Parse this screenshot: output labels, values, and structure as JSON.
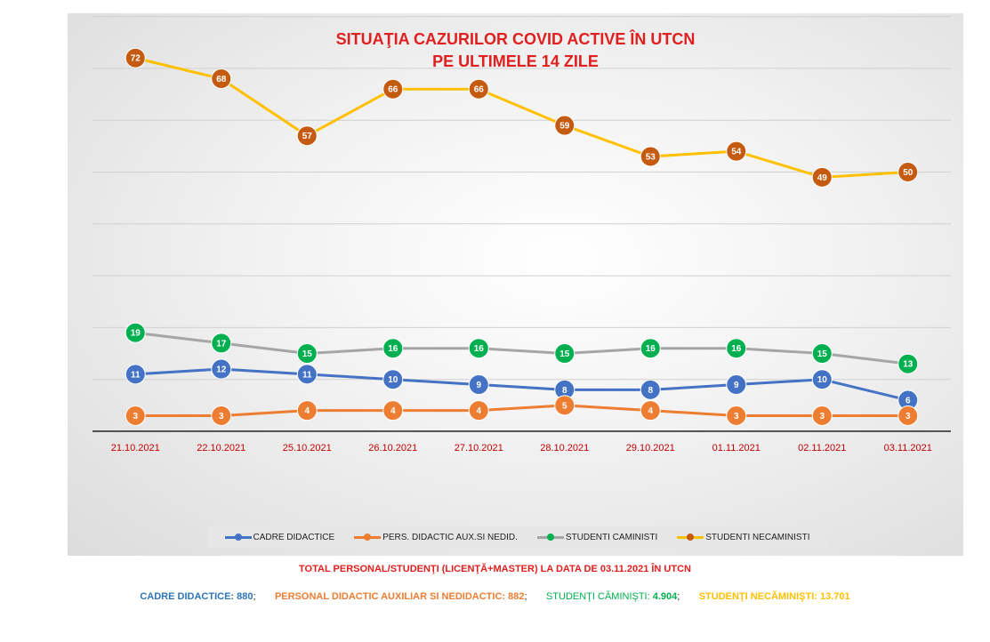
{
  "chart_data": {
    "type": "line",
    "title_line1": "SITUAŢIA CAZURILOR COVID ACTIVE ÎN UTCN",
    "title_line2": "PE ULTIMELE 14 ZILE",
    "categories": [
      "21.10.2021",
      "22.10.2021",
      "25.10.2021",
      "26.10.2021",
      "27.10.2021",
      "28.10.2021",
      "29.10.2021",
      "01.11.2021",
      "02.11.2021",
      "03.11.2021"
    ],
    "ylim": [
      0,
      80
    ],
    "grid": true,
    "legend_position": "bottom",
    "series": [
      {
        "name": "CADRE DIDACTICE",
        "values": [
          11,
          12,
          11,
          10,
          9,
          8,
          8,
          9,
          10,
          6
        ],
        "line_color": "#4472c4",
        "marker_color": "#4472c4"
      },
      {
        "name": "PERS. DIDACTIC AUX.SI NEDID.",
        "values": [
          3,
          3,
          4,
          4,
          4,
          5,
          4,
          3,
          3,
          3
        ],
        "line_color": "#ed7d31",
        "marker_color": "#ed7d31"
      },
      {
        "name": "STUDENTI CAMINISTI",
        "values": [
          19,
          17,
          15,
          16,
          16,
          15,
          16,
          16,
          15,
          13
        ],
        "line_color": "#a5a5a5",
        "marker_color": "#00b050"
      },
      {
        "name": "STUDENTI NECAMINISTI",
        "values": [
          72,
          68,
          57,
          66,
          66,
          59,
          53,
          54,
          49,
          50
        ],
        "line_color": "#ffc000",
        "marker_color": "#c55a11"
      }
    ],
    "tick_label_color": "#c00000",
    "title_color": "#e0201e"
  },
  "footer": {
    "total_title": "TOTAL PERSONAL/STUDENŢI (LICENŢĂ+MASTER) LA DATA DE 03.11.2021 ÎN UTCN",
    "stats": [
      {
        "label": "CADRE DIDACTICE: ",
        "value": "880",
        "sep": ";       ",
        "color": "#2e75b6",
        "bold": true
      },
      {
        "label": "PERSONAL DIDACTIC AUXILIAR SI NEDIDACTIC: ",
        "value": "882",
        "sep": ";       ",
        "color": "#ed7d31",
        "bold": true
      },
      {
        "label": "STUDENŢI CĂMINIŞTI: ",
        "value": "4.904",
        "sep": ";       ",
        "color": "#00b050",
        "bold": false
      },
      {
        "label": "STUDENŢI NECĂMINIŞTI: ",
        "value": "13.701",
        "sep": "",
        "color": "#ffc000",
        "bold": true
      }
    ]
  }
}
